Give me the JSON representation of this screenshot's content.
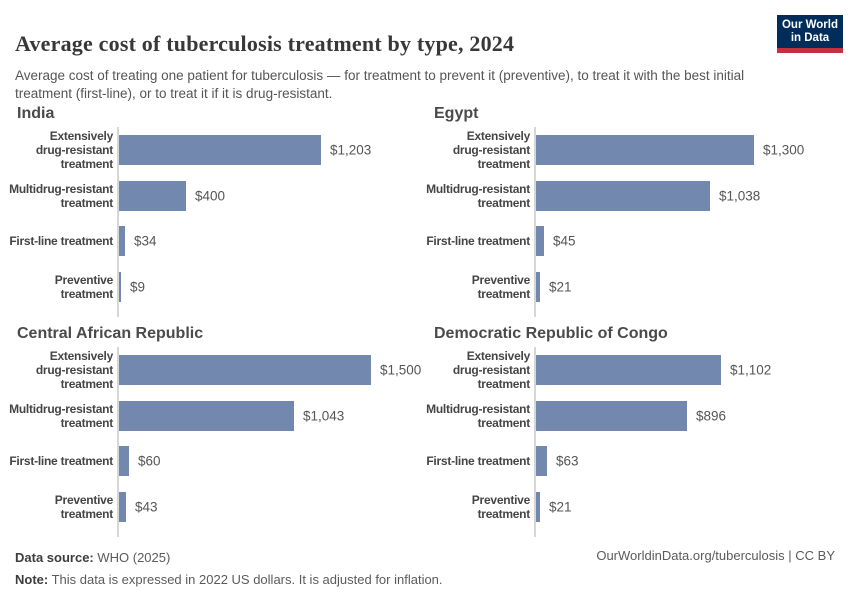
{
  "header": {
    "title": "Average cost of tuberculosis treatment by type, 2024",
    "subtitle": "Average cost of treating one patient for tuberculosis — for treatment to prevent it (preventive), to treat it with the best initial treatment (first-line), or to treat it if it is drug-resistant.",
    "logo": {
      "line1": "Our World",
      "line2": "in Data"
    }
  },
  "chart_data": [
    {
      "type": "bar",
      "orientation": "horizontal",
      "title": "India",
      "categories": [
        "Extensively drug-resistant treatment",
        "Multidrug-resistant treatment",
        "First-line treatment",
        "Preventive treatment"
      ],
      "category_display": [
        "Extensively\ndrug-resistant\ntreatment",
        "Multidrug-resistant\ntreatment",
        "First-line treatment",
        "Preventive\ntreatment"
      ],
      "values": [
        1203,
        400,
        34,
        9
      ],
      "value_labels": [
        "$1,203",
        "$400",
        "$34",
        "$9"
      ],
      "xlim": [
        0,
        1500
      ],
      "grid": false,
      "legend": "none"
    },
    {
      "type": "bar",
      "orientation": "horizontal",
      "title": "Egypt",
      "categories": [
        "Extensively drug-resistant treatment",
        "Multidrug-resistant treatment",
        "First-line treatment",
        "Preventive treatment"
      ],
      "category_display": [
        "Extensively\ndrug-resistant\ntreatment",
        "Multidrug-resistant\ntreatment",
        "First-line treatment",
        "Preventive\ntreatment"
      ],
      "values": [
        1300,
        1038,
        45,
        21
      ],
      "value_labels": [
        "$1,300",
        "$1,038",
        "$45",
        "$21"
      ],
      "xlim": [
        0,
        1500
      ],
      "grid": false,
      "legend": "none"
    },
    {
      "type": "bar",
      "orientation": "horizontal",
      "title": "Central African Republic",
      "categories": [
        "Extensively drug-resistant treatment",
        "Multidrug-resistant treatment",
        "First-line treatment",
        "Preventive treatment"
      ],
      "category_display": [
        "Extensively\ndrug-resistant\ntreatment",
        "Multidrug-resistant\ntreatment",
        "First-line treatment",
        "Preventive\ntreatment"
      ],
      "values": [
        1500,
        1043,
        60,
        43
      ],
      "value_labels": [
        "$1,500",
        "$1,043",
        "$60",
        "$43"
      ],
      "xlim": [
        0,
        1500
      ],
      "grid": false,
      "legend": "none"
    },
    {
      "type": "bar",
      "orientation": "horizontal",
      "title": "Democratic Republic of Congo",
      "categories": [
        "Extensively drug-resistant treatment",
        "Multidrug-resistant treatment",
        "First-line treatment",
        "Preventive treatment"
      ],
      "category_display": [
        "Extensively\ndrug-resistant\ntreatment",
        "Multidrug-resistant\ntreatment",
        "First-line treatment",
        "Preventive\ntreatment"
      ],
      "values": [
        1102,
        896,
        63,
        21
      ],
      "value_labels": [
        "$1,102",
        "$896",
        "$63",
        "$21"
      ],
      "xlim": [
        0,
        1500
      ],
      "grid": false,
      "legend": "none"
    }
  ],
  "footer": {
    "source_label": "Data source:",
    "source_value": " WHO (2025)",
    "note_label": "Note:",
    "note_value": " This data is expressed in 2022 US dollars. It is adjusted for inflation.",
    "link": "OurWorldinData.org/tuberculosis | CC BY"
  },
  "colors": {
    "bar": "#7288ae",
    "axis": "#d6d6d6",
    "logo_navy": "#002d59",
    "logo_red": "#c5303e"
  }
}
